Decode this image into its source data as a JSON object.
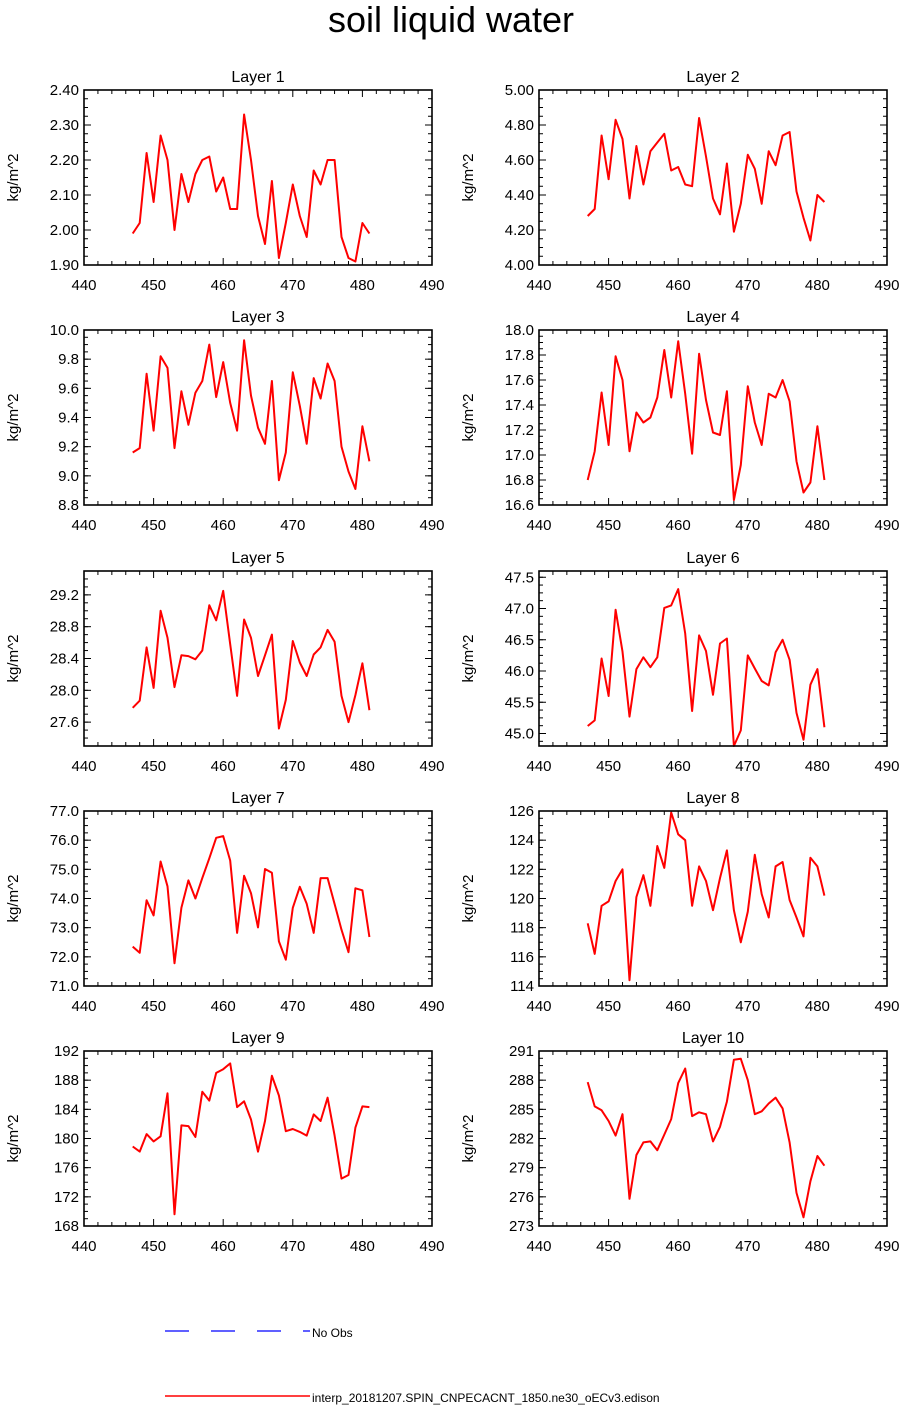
{
  "page": {
    "title": "soil liquid water"
  },
  "legend": {
    "obs_label": "No Obs",
    "obs_color": "#0000ff",
    "model_label": "interp_20181207.SPIN_CNPECACNT_1850.ne30_oECv3.edison",
    "model_color": "#ff0000"
  },
  "chart_data": [
    {
      "type": "line",
      "title": "Layer 1",
      "ylabel": "kg/m^2",
      "xlim": [
        440,
        490
      ],
      "xticks": [
        440,
        450,
        460,
        470,
        480,
        490
      ],
      "ylim": [
        1.9,
        2.4
      ],
      "yticks": [
        "1.90",
        "2.00",
        "2.10",
        "2.20",
        "2.30",
        "2.40"
      ],
      "x": [
        447,
        448,
        449,
        450,
        451,
        452,
        453,
        454,
        455,
        456,
        457,
        458,
        459,
        460,
        461,
        462,
        463,
        464,
        465,
        466,
        467,
        468,
        469,
        470,
        471,
        472,
        473,
        474,
        475,
        476,
        477,
        478,
        479,
        480,
        481
      ],
      "y": [
        1.99,
        2.02,
        2.22,
        2.08,
        2.27,
        2.2,
        2.0,
        2.16,
        2.08,
        2.16,
        2.2,
        2.21,
        2.11,
        2.15,
        2.06,
        2.06,
        2.33,
        2.2,
        2.04,
        1.96,
        2.14,
        1.92,
        2.02,
        2.13,
        2.04,
        1.98,
        2.17,
        2.13,
        2.2,
        2.2,
        1.98,
        1.92,
        1.91,
        2.02,
        1.99
      ]
    },
    {
      "type": "line",
      "title": "Layer 2",
      "ylabel": "kg/m^2",
      "xlim": [
        440,
        490
      ],
      "xticks": [
        440,
        450,
        460,
        470,
        480,
        490
      ],
      "ylim": [
        4.0,
        5.0
      ],
      "yticks": [
        "4.00",
        "4.20",
        "4.40",
        "4.60",
        "4.80",
        "5.00"
      ],
      "x": [
        447,
        448,
        449,
        450,
        451,
        452,
        453,
        454,
        455,
        456,
        457,
        458,
        459,
        460,
        461,
        462,
        463,
        464,
        465,
        466,
        467,
        468,
        469,
        470,
        471,
        472,
        473,
        474,
        475,
        476,
        477,
        478,
        479,
        480,
        481
      ],
      "y": [
        4.28,
        4.32,
        4.74,
        4.49,
        4.83,
        4.72,
        4.38,
        4.68,
        4.46,
        4.65,
        4.7,
        4.75,
        4.54,
        4.56,
        4.46,
        4.45,
        4.84,
        4.62,
        4.38,
        4.29,
        4.58,
        4.19,
        4.35,
        4.63,
        4.55,
        4.35,
        4.65,
        4.57,
        4.74,
        4.76,
        4.42,
        4.27,
        4.14,
        4.4,
        4.36
      ]
    },
    {
      "type": "line",
      "title": "Layer 3",
      "ylabel": "kg/m^2",
      "xlim": [
        440,
        490
      ],
      "xticks": [
        440,
        450,
        460,
        470,
        480,
        490
      ],
      "ylim": [
        8.8,
        10.0
      ],
      "yticks": [
        "8.8",
        "9.0",
        "9.2",
        "9.4",
        "9.6",
        "9.8",
        "10.0"
      ],
      "x": [
        447,
        448,
        449,
        450,
        451,
        452,
        453,
        454,
        455,
        456,
        457,
        458,
        459,
        460,
        461,
        462,
        463,
        464,
        465,
        466,
        467,
        468,
        469,
        470,
        471,
        472,
        473,
        474,
        475,
        476,
        477,
        478,
        479,
        480,
        481
      ],
      "y": [
        9.16,
        9.19,
        9.7,
        9.31,
        9.82,
        9.74,
        9.19,
        9.58,
        9.35,
        9.57,
        9.65,
        9.9,
        9.54,
        9.78,
        9.5,
        9.31,
        9.93,
        9.55,
        9.33,
        9.22,
        9.65,
        8.97,
        9.16,
        9.71,
        9.48,
        9.22,
        9.67,
        9.53,
        9.77,
        9.65,
        9.2,
        9.03,
        8.91,
        9.34,
        9.1
      ]
    },
    {
      "type": "line",
      "title": "Layer 4",
      "ylabel": "kg/m^2",
      "xlim": [
        440,
        490
      ],
      "xticks": [
        440,
        450,
        460,
        470,
        480,
        490
      ],
      "ylim": [
        16.6,
        18.0
      ],
      "yticks": [
        "16.6",
        "16.8",
        "17.0",
        "17.2",
        "17.4",
        "17.6",
        "17.8",
        "18.0"
      ],
      "x": [
        447,
        448,
        449,
        450,
        451,
        452,
        453,
        454,
        455,
        456,
        457,
        458,
        459,
        460,
        461,
        462,
        463,
        464,
        465,
        466,
        467,
        468,
        469,
        470,
        471,
        472,
        473,
        474,
        475,
        476,
        477,
        478,
        479,
        480,
        481
      ],
      "y": [
        16.8,
        17.03,
        17.5,
        17.08,
        17.79,
        17.6,
        17.03,
        17.34,
        17.26,
        17.3,
        17.46,
        17.84,
        17.46,
        17.91,
        17.49,
        17.01,
        17.81,
        17.44,
        17.18,
        17.16,
        17.51,
        16.64,
        16.92,
        17.55,
        17.26,
        17.08,
        17.49,
        17.46,
        17.6,
        17.43,
        16.95,
        16.7,
        16.78,
        17.23,
        16.8
      ]
    },
    {
      "type": "line",
      "title": "Layer 5",
      "ylabel": "kg/m^2",
      "xlim": [
        440,
        490
      ],
      "xticks": [
        440,
        450,
        460,
        470,
        480,
        490
      ],
      "ylim": [
        27.3,
        29.5
      ],
      "yticks": [
        "27.6",
        "28.0",
        "28.4",
        "28.8",
        "29.2"
      ],
      "x": [
        447,
        448,
        449,
        450,
        451,
        452,
        453,
        454,
        455,
        456,
        457,
        458,
        459,
        460,
        461,
        462,
        463,
        464,
        465,
        466,
        467,
        468,
        469,
        470,
        471,
        472,
        473,
        474,
        475,
        476,
        477,
        478,
        479,
        480,
        481
      ],
      "y": [
        27.78,
        27.87,
        28.54,
        28.03,
        29.0,
        28.66,
        28.04,
        28.44,
        28.43,
        28.39,
        28.5,
        29.07,
        28.88,
        29.25,
        28.58,
        27.93,
        28.89,
        28.66,
        28.18,
        28.44,
        28.7,
        27.52,
        27.88,
        28.62,
        28.35,
        28.18,
        28.45,
        28.54,
        28.76,
        28.61,
        27.93,
        27.6,
        27.94,
        28.34,
        27.75
      ]
    },
    {
      "type": "line",
      "title": "Layer 6",
      "ylabel": "kg/m^2",
      "xlim": [
        440,
        490
      ],
      "xticks": [
        440,
        450,
        460,
        470,
        480,
        490
      ],
      "ylim": [
        44.8,
        47.6
      ],
      "yticks": [
        "45.0",
        "45.5",
        "46.0",
        "46.5",
        "47.0",
        "47.5"
      ],
      "x": [
        447,
        448,
        449,
        450,
        451,
        452,
        453,
        454,
        455,
        456,
        457,
        458,
        459,
        460,
        461,
        462,
        463,
        464,
        465,
        466,
        467,
        468,
        469,
        470,
        471,
        472,
        473,
        474,
        475,
        476,
        477,
        478,
        479,
        480,
        481
      ],
      "y": [
        45.12,
        45.21,
        46.2,
        45.6,
        46.98,
        46.31,
        45.27,
        46.03,
        46.22,
        46.06,
        46.22,
        47.01,
        47.05,
        47.31,
        46.6,
        45.36,
        46.57,
        46.32,
        45.62,
        46.44,
        46.52,
        44.8,
        45.05,
        46.25,
        46.04,
        45.84,
        45.77,
        46.3,
        46.5,
        46.18,
        45.33,
        44.9,
        45.78,
        46.03,
        45.1
      ]
    },
    {
      "type": "line",
      "title": "Layer 7",
      "ylabel": "kg/m^2",
      "xlim": [
        440,
        490
      ],
      "xticks": [
        440,
        450,
        460,
        470,
        480,
        490
      ],
      "ylim": [
        71.0,
        77.0
      ],
      "yticks": [
        "71.0",
        "72.0",
        "73.0",
        "74.0",
        "75.0",
        "76.0",
        "77.0"
      ],
      "x": [
        447,
        448,
        449,
        450,
        451,
        452,
        453,
        454,
        455,
        456,
        457,
        458,
        459,
        460,
        461,
        462,
        463,
        464,
        465,
        466,
        467,
        468,
        469,
        470,
        471,
        472,
        473,
        474,
        475,
        476,
        477,
        478,
        479,
        480,
        481
      ],
      "y": [
        72.35,
        72.14,
        73.94,
        73.42,
        75.27,
        74.42,
        71.78,
        73.68,
        74.62,
        74.0,
        74.7,
        75.38,
        76.08,
        76.14,
        75.3,
        72.82,
        74.78,
        74.18,
        73.01,
        75.01,
        74.88,
        72.53,
        71.9,
        73.68,
        74.4,
        73.82,
        72.82,
        74.7,
        74.7,
        73.81,
        72.93,
        72.16,
        74.35,
        74.28,
        72.68
      ]
    },
    {
      "type": "line",
      "title": "Layer 8",
      "ylabel": "kg/m^2",
      "xlim": [
        440,
        490
      ],
      "xticks": [
        440,
        450,
        460,
        470,
        480,
        490
      ],
      "ylim": [
        114,
        126
      ],
      "yticks": [
        "114",
        "116",
        "118",
        "120",
        "122",
        "124",
        "126"
      ],
      "x": [
        447,
        448,
        449,
        450,
        451,
        452,
        453,
        454,
        455,
        456,
        457,
        458,
        459,
        460,
        461,
        462,
        463,
        464,
        465,
        466,
        467,
        468,
        469,
        470,
        471,
        472,
        473,
        474,
        475,
        476,
        477,
        478,
        479,
        480,
        481
      ],
      "y": [
        118.3,
        116.2,
        119.5,
        119.8,
        121.2,
        122.0,
        114.4,
        120.1,
        121.6,
        119.5,
        123.6,
        122.1,
        125.9,
        124.4,
        124.0,
        119.5,
        122.2,
        121.2,
        119.2,
        121.4,
        123.3,
        119.2,
        117.0,
        119.1,
        123.0,
        120.3,
        118.7,
        122.2,
        122.5,
        119.9,
        118.7,
        117.4,
        122.8,
        122.2,
        120.2
      ]
    },
    {
      "type": "line",
      "title": "Layer 9",
      "ylabel": "kg/m^2",
      "xlim": [
        440,
        490
      ],
      "xticks": [
        440,
        450,
        460,
        470,
        480,
        490
      ],
      "ylim": [
        168,
        192
      ],
      "yticks": [
        "168",
        "172",
        "176",
        "180",
        "184",
        "188",
        "192"
      ],
      "x": [
        447,
        448,
        449,
        450,
        451,
        452,
        453,
        454,
        455,
        456,
        457,
        458,
        459,
        460,
        461,
        462,
        463,
        464,
        465,
        466,
        467,
        468,
        469,
        470,
        471,
        472,
        473,
        474,
        475,
        476,
        477,
        478,
        479,
        480,
        481
      ],
      "y": [
        178.9,
        178.2,
        180.6,
        179.6,
        180.3,
        186.2,
        169.6,
        181.8,
        181.7,
        180.2,
        186.4,
        185.2,
        189.0,
        189.5,
        190.3,
        184.3,
        185.1,
        182.6,
        178.2,
        182.4,
        188.6,
        185.9,
        181.0,
        181.3,
        180.9,
        180.4,
        183.3,
        182.4,
        185.6,
        180.4,
        174.5,
        175.0,
        181.5,
        184.4,
        184.3
      ]
    },
    {
      "type": "line",
      "title": "Layer 10",
      "ylabel": "kg/m^2",
      "xlim": [
        440,
        490
      ],
      "xticks": [
        440,
        450,
        460,
        470,
        480,
        490
      ],
      "ylim": [
        273,
        291
      ],
      "yticks": [
        "273",
        "276",
        "279",
        "282",
        "285",
        "288",
        "291"
      ],
      "x": [
        447,
        448,
        449,
        450,
        451,
        452,
        453,
        454,
        455,
        456,
        457,
        458,
        459,
        460,
        461,
        462,
        463,
        464,
        465,
        466,
        467,
        468,
        469,
        470,
        471,
        472,
        473,
        474,
        475,
        476,
        477,
        478,
        479,
        480,
        481
      ],
      "y": [
        287.8,
        285.3,
        284.9,
        283.8,
        282.3,
        284.5,
        275.8,
        280.3,
        281.6,
        281.7,
        280.8,
        282.4,
        284.0,
        287.7,
        289.2,
        284.3,
        284.7,
        284.5,
        281.7,
        283.2,
        285.8,
        290.1,
        290.2,
        288.0,
        284.5,
        284.8,
        285.6,
        286.2,
        285.1,
        281.6,
        276.4,
        273.9,
        277.6,
        280.2,
        279.2
      ]
    }
  ]
}
